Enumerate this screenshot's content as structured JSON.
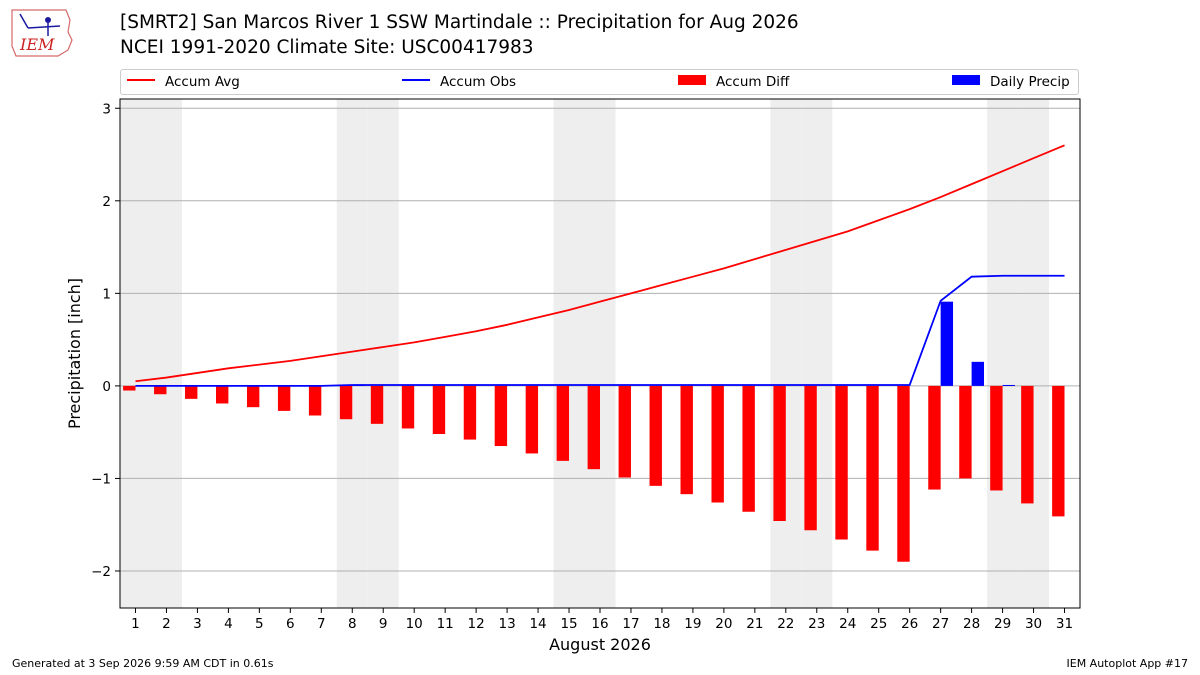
{
  "header": {
    "title_line1": "[SMRT2] San Marcos River 1 SSW Martindale :: Precipitation for Aug 2026",
    "title_line2": "NCEI 1991-2020 Climate Site: USC00417983",
    "logo_text": "IEM"
  },
  "footer": {
    "left": "Generated at 3 Sep 2026 9:59 AM CDT in 0.61s",
    "right": "IEM Autoplot App #17"
  },
  "legend": [
    {
      "label": "Accum Avg",
      "color": "#ff0000",
      "kind": "line"
    },
    {
      "label": "Accum Obs",
      "color": "#0000ff",
      "kind": "line"
    },
    {
      "label": "Accum Diff",
      "color": "#ff0000",
      "kind": "bar"
    },
    {
      "label": "Daily Precip",
      "color": "#0000ff",
      "kind": "bar"
    }
  ],
  "chart_data": {
    "type": "bar",
    "xlabel": "August 2026",
    "ylabel": "Precipitation [inch]",
    "xlim": [
      0.5,
      31.5
    ],
    "ylim": [
      -2.4,
      3.1
    ],
    "yticks": [
      -2,
      -1,
      0,
      1,
      2,
      3
    ],
    "ytick_labels": [
      "−2",
      "−1",
      "0",
      "1",
      "2",
      "3"
    ],
    "grid": "horizontal",
    "legend_position": "top",
    "weekend_shading_color": "#eeeeee",
    "weekend_days": [
      1,
      2,
      8,
      9,
      15,
      16,
      22,
      23,
      29,
      30
    ],
    "days": [
      1,
      2,
      3,
      4,
      5,
      6,
      7,
      8,
      9,
      10,
      11,
      12,
      13,
      14,
      15,
      16,
      17,
      18,
      19,
      20,
      21,
      22,
      23,
      24,
      25,
      26,
      27,
      28,
      29,
      30,
      31
    ],
    "series": [
      {
        "name": "Accum Avg",
        "kind": "line",
        "color": "#ff0000",
        "values": [
          0.05,
          0.09,
          0.14,
          0.19,
          0.23,
          0.27,
          0.32,
          0.37,
          0.42,
          0.47,
          0.53,
          0.59,
          0.66,
          0.74,
          0.82,
          0.91,
          1.0,
          1.09,
          1.18,
          1.27,
          1.37,
          1.47,
          1.57,
          1.67,
          1.79,
          1.91,
          2.04,
          2.18,
          2.32,
          2.46,
          2.6
        ]
      },
      {
        "name": "Accum Obs",
        "kind": "line",
        "color": "#0000ff",
        "values": [
          0.0,
          0.0,
          0.0,
          0.0,
          0.0,
          0.0,
          0.0,
          0.01,
          0.01,
          0.01,
          0.01,
          0.01,
          0.01,
          0.01,
          0.01,
          0.01,
          0.01,
          0.01,
          0.01,
          0.01,
          0.01,
          0.01,
          0.01,
          0.01,
          0.01,
          0.01,
          0.92,
          1.18,
          1.19,
          1.19,
          1.19
        ]
      },
      {
        "name": "Accum Diff",
        "kind": "bar",
        "color": "#ff0000",
        "values": [
          -0.05,
          -0.09,
          -0.14,
          -0.19,
          -0.23,
          -0.27,
          -0.32,
          -0.36,
          -0.41,
          -0.46,
          -0.52,
          -0.58,
          -0.65,
          -0.73,
          -0.81,
          -0.9,
          -0.99,
          -1.08,
          -1.17,
          -1.26,
          -1.36,
          -1.46,
          -1.56,
          -1.66,
          -1.78,
          -1.9,
          -1.12,
          -1.0,
          -1.13,
          -1.27,
          -1.41
        ]
      },
      {
        "name": "Daily Precip",
        "kind": "bar",
        "color": "#0000ff",
        "values": [
          0,
          0,
          0,
          0,
          0,
          0,
          0,
          0.01,
          0,
          0,
          0,
          0,
          0,
          0,
          0,
          0,
          0,
          0,
          0,
          0,
          0,
          0,
          0,
          0,
          0,
          0,
          0.91,
          0.26,
          0.01,
          0,
          0
        ]
      }
    ]
  }
}
